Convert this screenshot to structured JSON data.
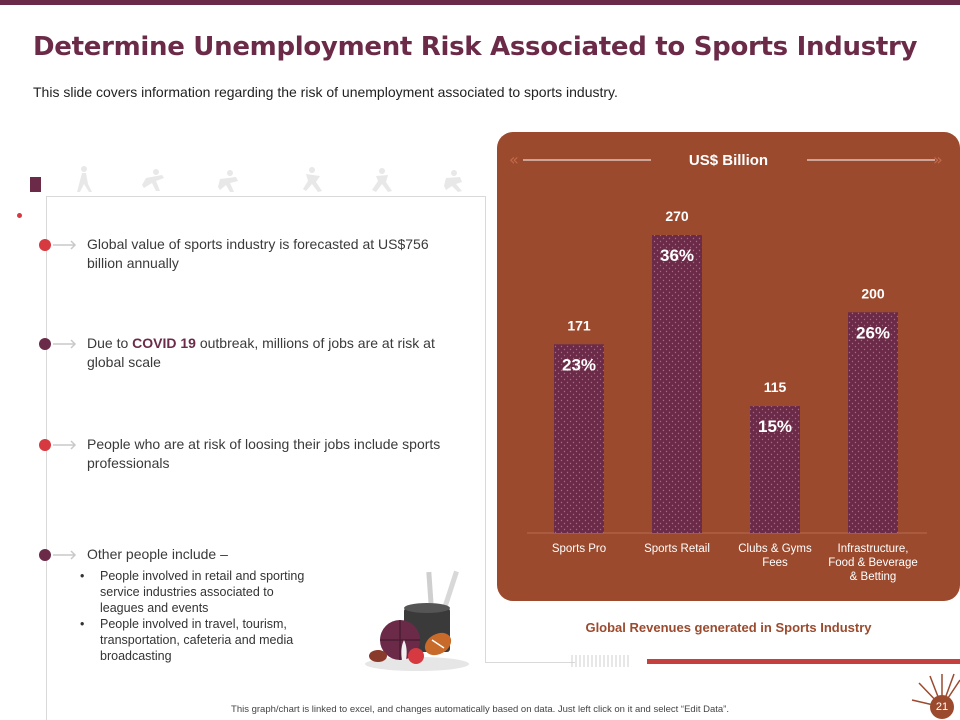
{
  "slide": {
    "title": "Determine Unemployment Risk Associated to Sports Industry",
    "subtitle": "This slide covers information regarding the risk of unemployment associated to sports industry.",
    "footer": "This graph/chart is linked to excel, and changes automatically based on data. Just left click on it and select “Edit Data”.",
    "page_number": "21"
  },
  "bullets": [
    {
      "text": "Global value of sports industry is forecasted at US$756 billion annually",
      "color": "#d6393f"
    },
    {
      "prefix": "Due to ",
      "bold": "COVID 19",
      "suffix": " outbreak, millions of jobs are at risk at global scale",
      "color": "#6b2b48"
    },
    {
      "text": "People who are at risk of loosing their jobs include sports professionals",
      "color": "#d6393f"
    },
    {
      "text": "Other people include –",
      "color": "#6b2b48"
    }
  ],
  "sub_bullets": [
    "People involved  in retail and sporting service industries associated to leagues and events",
    "People involved  in travel, tourism, transportation, cafeteria and media broadcasting"
  ],
  "chart_data": {
    "type": "bar",
    "title": "US$ Billion",
    "caption": "Global Revenues generated in Sports Industry",
    "categories": [
      "Sports Pro",
      "Sports Retail",
      "Clubs & Gyms Fees",
      "Infrastructure, Food & Beverage & Betting"
    ],
    "category_lines": [
      [
        "Sports Pro"
      ],
      [
        "Sports Retail"
      ],
      [
        "Clubs & Gyms",
        "Fees"
      ],
      [
        "Infrastructure,",
        "Food & Beverage",
        "& Betting"
      ]
    ],
    "values": [
      171,
      270,
      115,
      200
    ],
    "percent_labels": [
      "23%",
      "36%",
      "15%",
      "26%"
    ],
    "ylim": [
      0,
      300
    ],
    "grid": false,
    "legend": "none"
  },
  "colors": {
    "brand": "#6b2b48",
    "panel": "#9b4a2e",
    "accent_red": "#d6393f",
    "bar": "#6b2b48"
  }
}
